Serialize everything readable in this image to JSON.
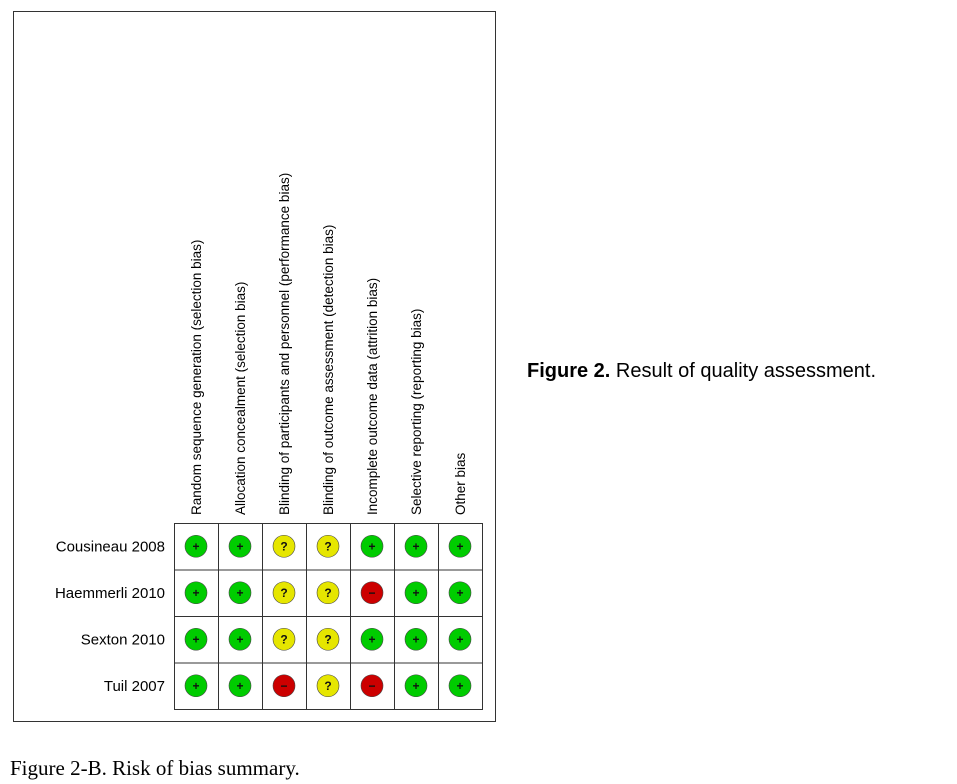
{
  "columns": [
    "Random sequence generation (selection bias)",
    "Allocation concealment (selection bias)",
    "Blinding of participants and personnel (performance bias)",
    "Blinding of outcome assessment (detection bias)",
    "Incomplete outcome data (attrition bias)",
    "Selective reporting (reporting bias)",
    "Other bias"
  ],
  "rows": [
    {
      "study": "Cousineau 2008",
      "judgments": [
        "+",
        "+",
        "?",
        "?",
        "+",
        "+",
        "+"
      ]
    },
    {
      "study": "Haemmerli 2010",
      "judgments": [
        "+",
        "+",
        "?",
        "?",
        "−",
        "+",
        "+"
      ]
    },
    {
      "study": "Sexton 2010",
      "judgments": [
        "+",
        "+",
        "?",
        "?",
        "+",
        "+",
        "+"
      ]
    },
    {
      "study": "Tuil 2007",
      "judgments": [
        "+",
        "+",
        "−",
        "?",
        "−",
        "+",
        "+"
      ]
    }
  ],
  "side_caption": {
    "label": "Figure 2.",
    "text": "Result of quality assessment."
  },
  "caption": "Figure 2-B. Risk of bias summary."
}
